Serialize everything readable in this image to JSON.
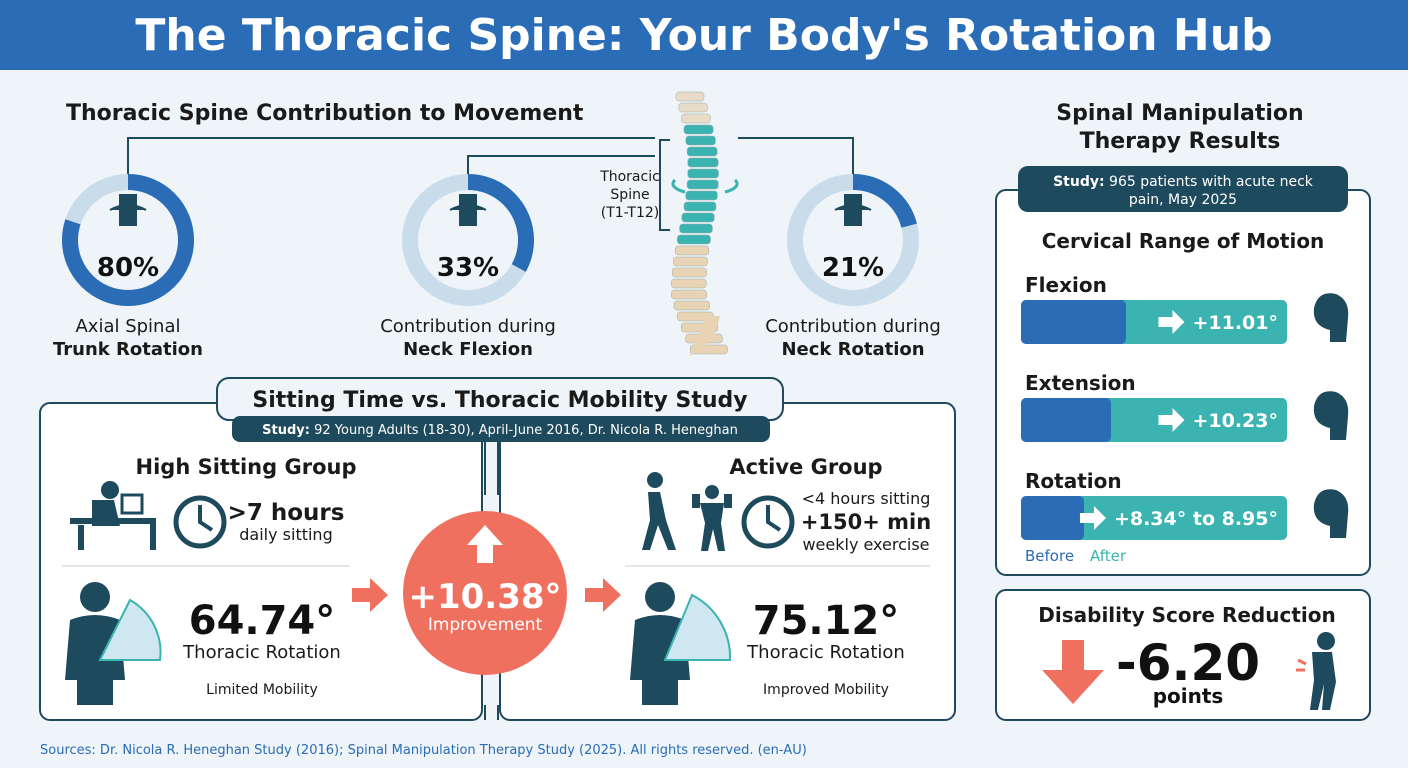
{
  "header": {
    "title": "The Thoracic Spine: Your Body's Rotation Hub"
  },
  "contribution": {
    "title": "Thoracic Spine Contribution to Movement",
    "spine_label": [
      "Thoracic",
      "Spine",
      "(T1-T12)"
    ],
    "donuts": [
      {
        "value": 80,
        "value_label": "80%",
        "line1": "Axial Spinal",
        "line2": "Trunk Rotation"
      },
      {
        "value": 33,
        "value_label": "33%",
        "line1": "Contribution during",
        "line2": "Neck Flexion"
      },
      {
        "value": 21,
        "value_label": "21%",
        "line1": "Contribution during",
        "line2": "Neck Rotation"
      }
    ]
  },
  "study": {
    "title": "Sitting Time vs. Thoracic Mobility Study",
    "study_label": "Study:",
    "study_text": "92 Young Adults (18-30), April-June 2016, Dr. Nicola R. Heneghan",
    "high": {
      "title": "High Sitting Group",
      "hours": ">7 hours",
      "hours_sub": "daily sitting",
      "angle": "64.74°",
      "angle_label": "Thoracic Rotation",
      "mobility": "Limited Mobility"
    },
    "improvement": {
      "value": "+10.38°",
      "label": "Improvement"
    },
    "active": {
      "title": "Active Group",
      "sitting": "<4 hours sitting",
      "exercise": "+150+ min",
      "exercise_sub": "weekly exercise",
      "angle": "75.12°",
      "angle_label": "Thoracic Rotation",
      "mobility": "Improved Mobility"
    }
  },
  "manipulation": {
    "title_line1": "Spinal Manipulation",
    "title_line2": "Therapy Results",
    "study_label": "Study:",
    "study_line1": "965 patients with acute neck",
    "study_line2": "pain, May 2025",
    "rom_title": "Cervical Range of Motion",
    "bars": [
      {
        "label": "Flexion",
        "change": "+11.01°"
      },
      {
        "label": "Extension",
        "change": "+10.23°"
      },
      {
        "label": "Rotation",
        "change": "+8.34° to 8.95°"
      }
    ],
    "legend": [
      "Before",
      "After"
    ]
  },
  "disability": {
    "title": "Disability Score Reduction",
    "value": "-6.20",
    "unit": "points"
  },
  "footer": "Sources: Dr. Nicola R. Heneghan Study (2016); Spinal Manipulation Therapy Study (2025). All rights reserved. (en-AU)"
}
